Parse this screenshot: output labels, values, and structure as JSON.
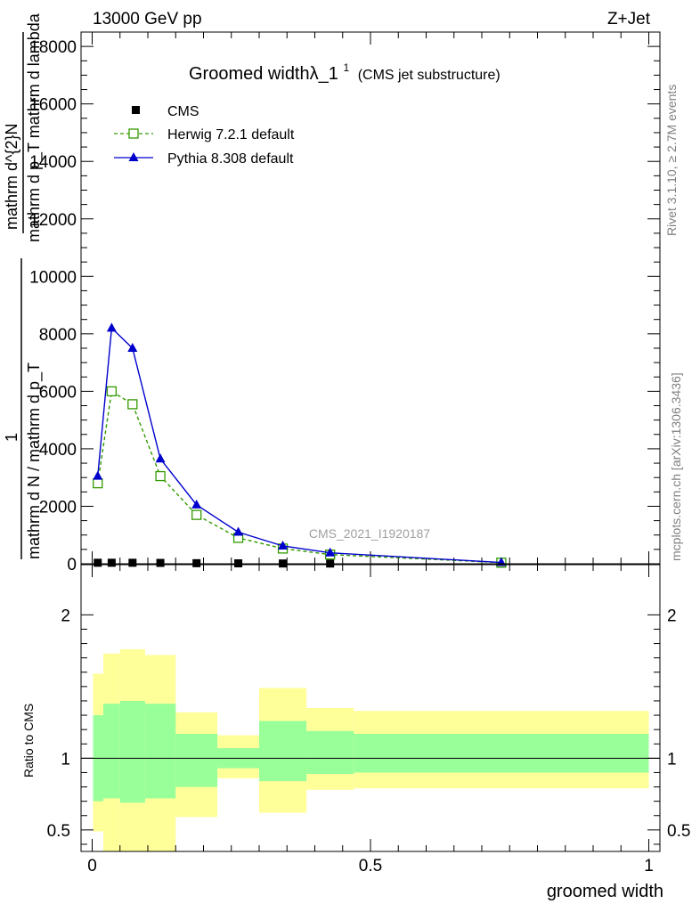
{
  "header": {
    "left": "13000 GeV pp",
    "right": "Z+Jet"
  },
  "title": {
    "main": "Groomed widthλ_1",
    "sup": "1",
    "paren": "(CMS jet substructure)"
  },
  "side_labels": {
    "rivet": "Rivet 3.1.10, ≥ 2.7M events",
    "mcplots": "mcplots.cern.ch [arXiv:1306.3436]"
  },
  "watermark": "CMS_2021_I1920187",
  "y_label_main": {
    "one": "1",
    "sigma": "mathrm d N / mathrm d p_T",
    "deriv_top": "mathrm d^{2}N",
    "deriv_bottom": "mathrm d p_T mathrm d lambda"
  },
  "y_label_ratio": "Ratio to CMS",
  "x_label": "groomed width",
  "legend": [
    {
      "label": "CMS",
      "key": "cms"
    },
    {
      "label": "Herwig 7.2.1 default",
      "key": "herwig"
    },
    {
      "label": "Pythia 8.308 default",
      "key": "pythia"
    }
  ],
  "colors": {
    "cms": "#000000",
    "herwig": "#339900",
    "pythia": "#0000cc",
    "band_inner": "#99ff99",
    "band_outer": "#ffff99",
    "unity_line": "#000000"
  },
  "chart_data": {
    "type": "line",
    "xlim": [
      -0.02,
      1.02
    ],
    "main": {
      "ylim": [
        0,
        18500
      ],
      "yticks": [
        0,
        2000,
        4000,
        6000,
        8000,
        10000,
        12000,
        14000,
        16000,
        18000
      ],
      "ytick_labels": [
        "0",
        "2000",
        "4000",
        "6000",
        "8000",
        "10000",
        "12000",
        "14000",
        "16000",
        "18000"
      ]
    },
    "ratio": {
      "ylim": [
        0.35,
        2.35
      ],
      "yticks": [
        0.5,
        1,
        2
      ],
      "ytick_labels": [
        "0.5",
        "1",
        "2"
      ]
    },
    "xticks": [
      0,
      0.5,
      1
    ],
    "xtick_labels": [
      "0",
      "0.5",
      "1"
    ],
    "bin_edges": [
      0.0,
      0.02,
      0.05,
      0.095,
      0.15,
      0.225,
      0.3,
      0.385,
      0.47,
      1.0
    ],
    "series": [
      {
        "name": "CMS",
        "key": "cms",
        "marker": "square",
        "x": [
          0.01,
          0.035,
          0.0725,
          0.1225,
          0.1875,
          0.2625,
          0.3425,
          0.4275,
          0.735
        ],
        "y": [
          35,
          35,
          35,
          30,
          20,
          15,
          10,
          8,
          5
        ]
      },
      {
        "name": "Herwig 7.2.1 default",
        "key": "herwig",
        "marker": "open-square",
        "x": [
          0.01,
          0.035,
          0.0725,
          0.1225,
          0.1875,
          0.2625,
          0.3425,
          0.4275,
          0.735
        ],
        "y": [
          2800,
          6000,
          5550,
          3050,
          1700,
          900,
          530,
          320,
          40
        ]
      },
      {
        "name": "Pythia 8.308 default",
        "key": "pythia",
        "marker": "triangle",
        "x": [
          0.01,
          0.035,
          0.0725,
          0.1225,
          0.1875,
          0.2625,
          0.3425,
          0.4275,
          0.735
        ],
        "y": [
          3050,
          8200,
          7500,
          3650,
          2050,
          1100,
          620,
          380,
          45
        ]
      }
    ],
    "ratio_bands": {
      "inner_lo": [
        0.7,
        0.72,
        0.69,
        0.72,
        0.8,
        0.93,
        0.84,
        0.89,
        0.9
      ],
      "inner_hi": [
        1.3,
        1.38,
        1.4,
        1.38,
        1.17,
        1.07,
        1.26,
        1.19,
        1.17
      ],
      "outer_lo": [
        0.49,
        0.25,
        0.25,
        0.25,
        0.59,
        0.86,
        0.62,
        0.78,
        0.79
      ],
      "outer_hi": [
        1.59,
        1.73,
        1.76,
        1.72,
        1.32,
        1.16,
        1.49,
        1.35,
        1.33
      ]
    }
  }
}
